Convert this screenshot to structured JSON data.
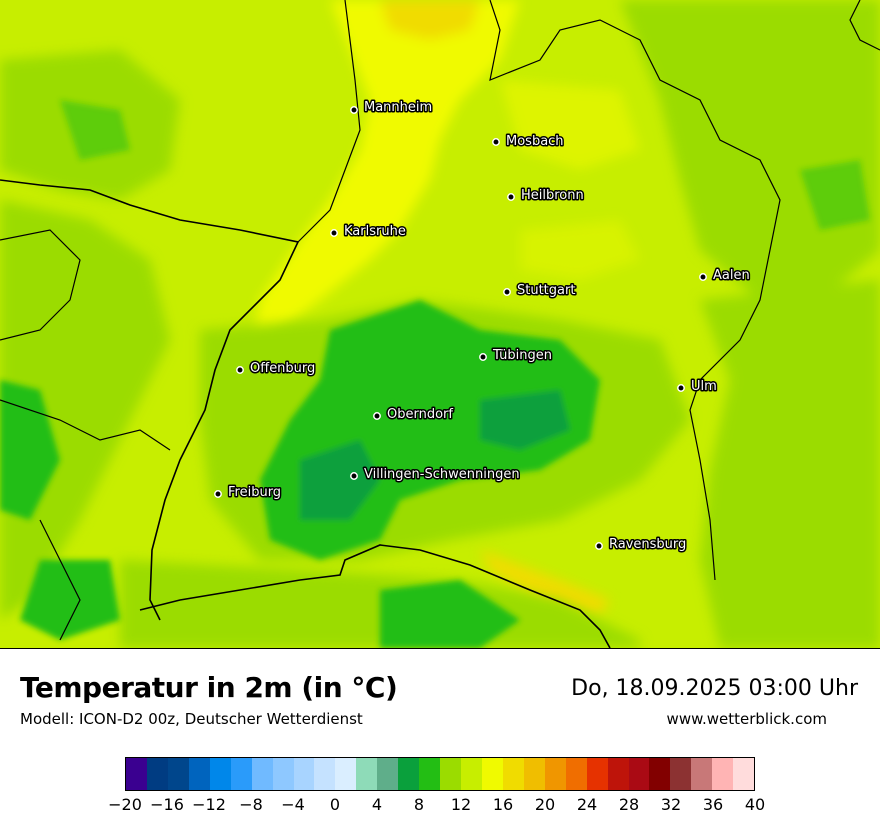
{
  "map": {
    "base_color": "#c7ee00",
    "cities": [
      {
        "name": "Mannheim"
      },
      {
        "name": "Mosbach"
      },
      {
        "name": "Heilbronn"
      },
      {
        "name": "Karlsruhe"
      },
      {
        "name": "Aalen"
      },
      {
        "name": "Stuttgart"
      },
      {
        "name": "Tübingen"
      },
      {
        "name": "Offenburg"
      },
      {
        "name": "Ulm"
      },
      {
        "name": "Oberndorf"
      },
      {
        "name": "Villingen-Schwenningen"
      },
      {
        "name": "Freiburg"
      },
      {
        "name": "Ravensburg"
      }
    ]
  },
  "header": {
    "title": "Temperatur in 2m (in °C)",
    "subtitle": "Modell: ICON-D2 00z, Deutscher Wetterdienst",
    "valid_time": "Do, 18.09.2025 03:00 Uhr",
    "source": "www.wetterblick.com"
  },
  "legend": {
    "colors": [
      "#3a0090",
      "#003c82",
      "#00468c",
      "#0064be",
      "#0087ea",
      "#2a9bfa",
      "#70baff",
      "#8ec8ff",
      "#a8d4ff",
      "#c5e2ff",
      "#daeeff",
      "#8edbb8",
      "#5fae8a",
      "#0aa03c",
      "#23be14",
      "#9bdc00",
      "#c7ee00",
      "#f0fa00",
      "#f0dc00",
      "#f0be00",
      "#f09600",
      "#f06e00",
      "#e63200",
      "#be140a",
      "#aa0a14",
      "#820000",
      "#8c3232",
      "#c87878",
      "#ffb4b4",
      "#ffdcdc"
    ],
    "tick_labels": [
      "−20",
      "−16",
      "−12",
      "−8",
      "−4",
      "0",
      "4",
      "8",
      "12",
      "16",
      "20",
      "24",
      "28",
      "32",
      "36",
      "40"
    ],
    "range": [
      -20,
      40
    ]
  }
}
